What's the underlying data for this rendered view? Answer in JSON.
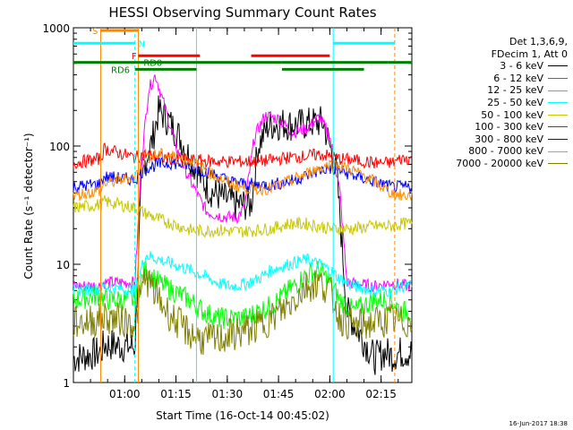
{
  "chart_data": {
    "type": "line",
    "title": "HESSI Observing Summary Count Rates",
    "xlabel": "Start Time (16-Oct-14 00:45:02)",
    "ylabel": "Count Rate (s⁻¹ detector⁻¹)",
    "ylog": true,
    "ylim": [
      1,
      1000
    ],
    "xlim_minutes": [
      0,
      99
    ],
    "x_ticks": [
      {
        "label": "01:00",
        "min": 15
      },
      {
        "label": "01:15",
        "min": 30
      },
      {
        "label": "01:30",
        "min": 45
      },
      {
        "label": "01:45",
        "min": 60
      },
      {
        "label": "02:00",
        "min": 75
      },
      {
        "label": "02:15",
        "min": 90
      }
    ],
    "y_ticks": [
      {
        "label": "1",
        "value": 1
      },
      {
        "label": "10",
        "value": 10
      },
      {
        "label": "100",
        "value": 100
      },
      {
        "label": "1000",
        "value": 1000
      }
    ],
    "legend_header": [
      "Det 1,3,6,9,",
      "FDecim 1, Att 0"
    ],
    "series": [
      {
        "name": "3 - 6 keV",
        "color": "#000000",
        "values": [
          [
            0,
            1.6
          ],
          [
            8,
            1.8
          ],
          [
            9,
            2.1
          ],
          [
            18,
            2
          ],
          [
            20,
            60
          ],
          [
            23,
            110
          ],
          [
            25,
            200
          ],
          [
            28,
            160
          ],
          [
            31,
            120
          ],
          [
            34,
            80
          ],
          [
            37,
            55
          ],
          [
            40,
            42
          ],
          [
            44,
            36
          ],
          [
            48,
            32
          ],
          [
            52,
            32
          ],
          [
            54,
            100
          ],
          [
            57,
            150
          ],
          [
            61,
            155
          ],
          [
            65,
            150
          ],
          [
            69,
            155
          ],
          [
            73,
            160
          ],
          [
            75,
            100
          ],
          [
            77,
            60
          ],
          [
            80,
            4
          ],
          [
            88,
            1.6
          ],
          [
            91,
            1.8
          ],
          [
            93,
            1.7
          ],
          [
            96,
            1.8
          ]
        ]
      },
      {
        "name": "6 - 12 keV",
        "color": "#ff00ff",
        "values": [
          [
            0,
            6.5
          ],
          [
            8,
            6.6
          ],
          [
            9,
            7
          ],
          [
            18,
            7
          ],
          [
            20,
            80
          ],
          [
            22,
            300
          ],
          [
            24,
            400
          ],
          [
            27,
            200
          ],
          [
            30,
            100
          ],
          [
            33,
            60
          ],
          [
            36,
            40
          ],
          [
            39,
            28
          ],
          [
            42,
            26
          ],
          [
            45,
            25
          ],
          [
            48,
            25
          ],
          [
            50,
            30
          ],
          [
            53,
            120
          ],
          [
            56,
            180
          ],
          [
            60,
            170
          ],
          [
            64,
            130
          ],
          [
            68,
            140
          ],
          [
            72,
            175
          ],
          [
            75,
            120
          ],
          [
            78,
            40
          ],
          [
            80,
            7
          ],
          [
            88,
            6.5
          ],
          [
            93,
            7
          ],
          [
            96,
            6.6
          ]
        ]
      },
      {
        "name": "12 - 25 keV",
        "color": "#00ff00",
        "values": [
          [
            0,
            5
          ],
          [
            8,
            5.5
          ],
          [
            9,
            5
          ],
          [
            18,
            5
          ],
          [
            21,
            9
          ],
          [
            25,
            7
          ],
          [
            29,
            6
          ],
          [
            34,
            5
          ],
          [
            38,
            4
          ],
          [
            42,
            3.5
          ],
          [
            46,
            3.5
          ],
          [
            50,
            3.5
          ],
          [
            54,
            4
          ],
          [
            58,
            4.5
          ],
          [
            63,
            6
          ],
          [
            68,
            8
          ],
          [
            72,
            9
          ],
          [
            75,
            7
          ],
          [
            78,
            5
          ],
          [
            82,
            4
          ],
          [
            88,
            5
          ],
          [
            93,
            5
          ],
          [
            96,
            4
          ]
        ]
      },
      {
        "name": "25 - 50 keV",
        "color": "#00ffff",
        "values": [
          [
            0,
            6
          ],
          [
            8,
            6.2
          ],
          [
            9,
            6.5
          ],
          [
            18,
            6
          ],
          [
            21,
            12
          ],
          [
            25,
            11
          ],
          [
            29,
            10
          ],
          [
            34,
            9
          ],
          [
            38,
            8
          ],
          [
            42,
            7
          ],
          [
            46,
            6.5
          ],
          [
            50,
            6.8
          ],
          [
            54,
            7.5
          ],
          [
            58,
            9
          ],
          [
            63,
            10
          ],
          [
            68,
            11
          ],
          [
            72,
            10
          ],
          [
            75,
            9
          ],
          [
            78,
            7.5
          ],
          [
            82,
            6.5
          ],
          [
            88,
            6
          ],
          [
            93,
            6
          ],
          [
            96,
            6.5
          ]
        ]
      },
      {
        "name": "50 - 100 keV",
        "color": "#c8c800",
        "values": [
          [
            0,
            30
          ],
          [
            8,
            32
          ],
          [
            9,
            34
          ],
          [
            18,
            30
          ],
          [
            21,
            27
          ],
          [
            25,
            24
          ],
          [
            29,
            22
          ],
          [
            34,
            19.5
          ],
          [
            38,
            19
          ],
          [
            42,
            19.5
          ],
          [
            46,
            19
          ],
          [
            50,
            19
          ],
          [
            54,
            19.5
          ],
          [
            58,
            20
          ],
          [
            63,
            22
          ],
          [
            68,
            22
          ],
          [
            72,
            21
          ],
          [
            75,
            20
          ],
          [
            78,
            20
          ],
          [
            82,
            20
          ],
          [
            88,
            21
          ],
          [
            93,
            21
          ],
          [
            96,
            22
          ]
        ]
      },
      {
        "name": "100 - 300 keV",
        "color": "#ff0000",
        "values": [
          [
            0,
            72
          ],
          [
            8,
            78
          ],
          [
            9,
            95
          ],
          [
            18,
            80
          ],
          [
            21,
            85
          ],
          [
            25,
            80
          ],
          [
            29,
            78
          ],
          [
            34,
            76
          ],
          [
            38,
            75
          ],
          [
            42,
            74
          ],
          [
            46,
            74
          ],
          [
            50,
            74
          ],
          [
            54,
            74
          ],
          [
            58,
            76
          ],
          [
            63,
            80
          ],
          [
            68,
            82
          ],
          [
            72,
            85
          ],
          [
            75,
            82
          ],
          [
            78,
            78
          ],
          [
            82,
            76
          ],
          [
            88,
            72
          ],
          [
            93,
            72
          ],
          [
            96,
            78
          ]
        ]
      },
      {
        "name": "300 - 800 keV",
        "color": "#0000ff",
        "values": [
          [
            0,
            45
          ],
          [
            8,
            48
          ],
          [
            9,
            55
          ],
          [
            18,
            52
          ],
          [
            21,
            65
          ],
          [
            25,
            70
          ],
          [
            29,
            72
          ],
          [
            34,
            68
          ],
          [
            38,
            62
          ],
          [
            42,
            56
          ],
          [
            46,
            50
          ],
          [
            50,
            48
          ],
          [
            54,
            47
          ],
          [
            58,
            47
          ],
          [
            63,
            50
          ],
          [
            68,
            56
          ],
          [
            72,
            62
          ],
          [
            75,
            65
          ],
          [
            78,
            62
          ],
          [
            82,
            56
          ],
          [
            88,
            50
          ],
          [
            93,
            45
          ],
          [
            96,
            45
          ]
        ]
      },
      {
        "name": "800 - 7000 keV",
        "color": "#ff9000",
        "values": [
          [
            0,
            38
          ],
          [
            8,
            42
          ],
          [
            9,
            48
          ],
          [
            18,
            55
          ],
          [
            21,
            80
          ],
          [
            25,
            85
          ],
          [
            29,
            82
          ],
          [
            34,
            75
          ],
          [
            38,
            65
          ],
          [
            42,
            55
          ],
          [
            46,
            48
          ],
          [
            50,
            44
          ],
          [
            54,
            43
          ],
          [
            58,
            44
          ],
          [
            63,
            50
          ],
          [
            68,
            58
          ],
          [
            72,
            65
          ],
          [
            75,
            70
          ],
          [
            78,
            68
          ],
          [
            82,
            62
          ],
          [
            88,
            50
          ],
          [
            93,
            40
          ],
          [
            96,
            38
          ]
        ]
      },
      {
        "name": "7000 - 20000 keV",
        "color": "#808000",
        "values": [
          [
            0,
            3.2
          ],
          [
            8,
            3.4
          ],
          [
            9,
            3.6
          ],
          [
            18,
            3.2
          ],
          [
            21,
            8
          ],
          [
            25,
            5
          ],
          [
            29,
            3.5
          ],
          [
            34,
            2.6
          ],
          [
            38,
            2.3
          ],
          [
            42,
            2.3
          ],
          [
            46,
            2.5
          ],
          [
            50,
            2.7
          ],
          [
            54,
            3
          ],
          [
            58,
            3.5
          ],
          [
            63,
            4.5
          ],
          [
            68,
            6.5
          ],
          [
            72,
            7
          ],
          [
            75,
            6
          ],
          [
            78,
            3.5
          ],
          [
            82,
            3
          ],
          [
            88,
            3.2
          ],
          [
            93,
            3.4
          ],
          [
            96,
            3.2
          ]
        ]
      }
    ],
    "annotations": [
      {
        "label": "S",
        "color": "#ff8800",
        "x": [
          8,
          19
        ],
        "level": 950,
        "label_min": 5.5
      },
      {
        "label": "N",
        "color": "#00ffff",
        "x": [
          0,
          18
        ],
        "level": 740,
        "label_min": 19
      },
      {
        "label": "F",
        "color": "#ff0000",
        "x": [
          19,
          37
        ],
        "level": 580,
        "label_min": 17
      },
      {
        "label": "",
        "color": "#ff0000",
        "x": [
          52,
          75
        ],
        "level": 580
      },
      {
        "label": "",
        "color": "#00ffff",
        "x": [
          76,
          94
        ],
        "level": 740
      },
      {
        "label": "RD0",
        "color": "#008000",
        "x": [
          0,
          61
        ],
        "level": 510,
        "label_min": 20.5
      },
      {
        "label": "",
        "color": "#008000",
        "x": [
          61,
          92
        ],
        "level": 510
      },
      {
        "label": "",
        "color": "#008000",
        "x": [
          92,
          99
        ],
        "level": 510
      },
      {
        "label": "RD6",
        "color": "#008000",
        "x": [
          18,
          36
        ],
        "level": 445,
        "label_min": 11
      },
      {
        "label": "",
        "color": "#008000",
        "x": [
          61,
          85
        ],
        "level": 445
      }
    ],
    "vertical_markers": [
      {
        "x": 8,
        "color": "#ff8800",
        "style": "solid"
      },
      {
        "x": 18,
        "color": "#00ffff",
        "style": "dashed"
      },
      {
        "x": 19,
        "color": "#ff8800",
        "style": "solid"
      },
      {
        "x": 36,
        "color": "#00ffff",
        "style": "solid"
      },
      {
        "x": 76,
        "color": "#00ffff",
        "style": "solid"
      },
      {
        "x": 94,
        "color": "#ff8800",
        "style": "dashed"
      }
    ]
  },
  "footer": "16-Jun-2017 18:38"
}
